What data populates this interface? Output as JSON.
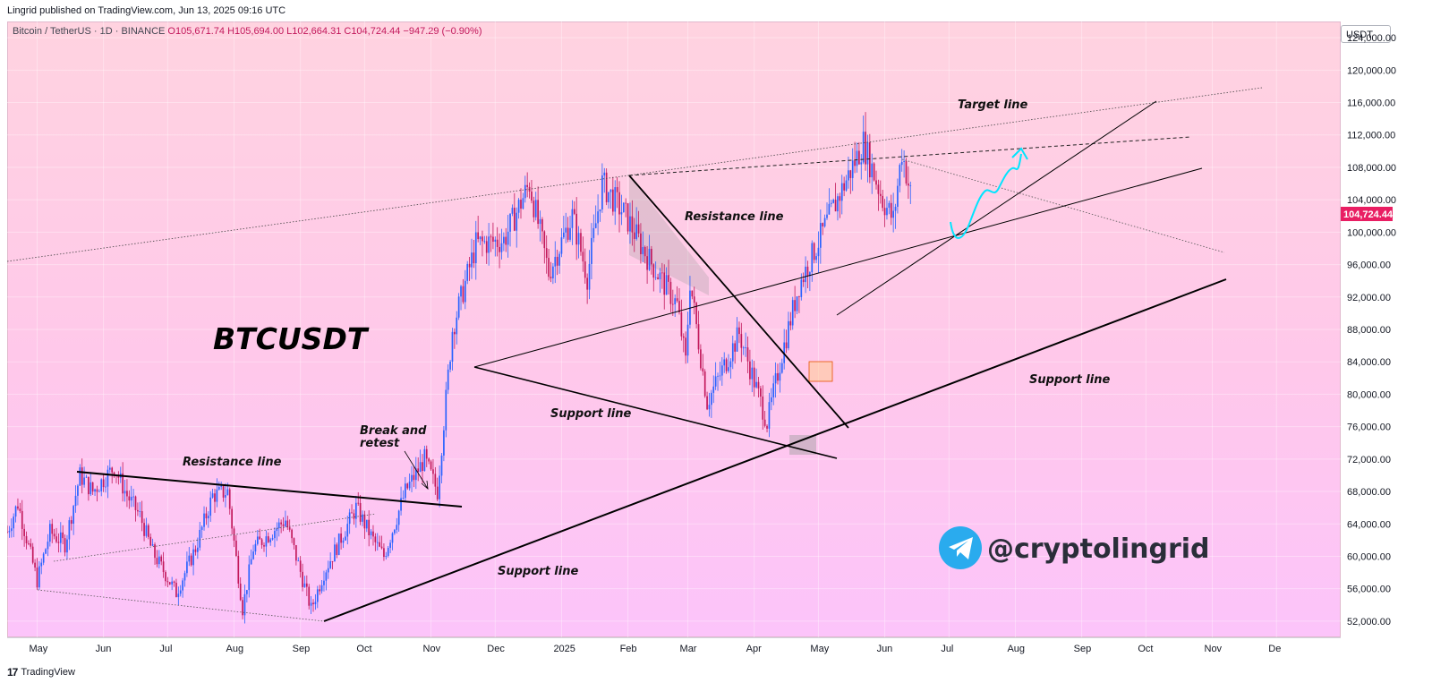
{
  "header": {
    "publish_line": "Lingrid published on TradingView.com, Jun 13, 2025 09:16 UTC",
    "symbol_name": "Bitcoin / TetherUS · 1D · BINANCE",
    "ohlc": "O105,671.74 H105,694.00 L102,664.31 C104,724.44 −947.29 (−0.90%)",
    "currency": "USDT"
  },
  "footer": {
    "logo": "17",
    "brand": "TradingView"
  },
  "colors": {
    "bull": "#2962ff",
    "bear": "#c2185b",
    "last_price_tag": "#e91e63",
    "arrow": "#00e5ff",
    "telegram": "#2aabee"
  },
  "chart_data": {
    "type": "candlestick",
    "symbol": "BTCUSDT",
    "ylim": [
      50000,
      126000
    ],
    "x_start": "2024-04-17",
    "x_end": "2025-12-31",
    "y_ticks": [
      "124,000.00",
      "120,000.00",
      "116,000.00",
      "112,000.00",
      "108,000.00",
      "104,000.00",
      "100,000.00",
      "96,000.00",
      "92,000.00",
      "88,000.00",
      "84,000.00",
      "80,000.00",
      "76,000.00",
      "72,000.00",
      "68,000.00",
      "64,000.00",
      "60,000.00",
      "56,000.00",
      "52,000.00"
    ],
    "x_ticks": [
      {
        "label": "May",
        "date": "2024-05-01"
      },
      {
        "label": "Jun",
        "date": "2024-06-01"
      },
      {
        "label": "Jul",
        "date": "2024-07-01"
      },
      {
        "label": "Aug",
        "date": "2024-08-01"
      },
      {
        "label": "Sep",
        "date": "2024-09-01"
      },
      {
        "label": "Oct",
        "date": "2024-10-01"
      },
      {
        "label": "Nov",
        "date": "2024-11-01"
      },
      {
        "label": "Dec",
        "date": "2024-12-01"
      },
      {
        "label": "2025",
        "date": "2025-01-01"
      },
      {
        "label": "Feb",
        "date": "2025-02-01"
      },
      {
        "label": "Mar",
        "date": "2025-03-01"
      },
      {
        "label": "Apr",
        "date": "2025-04-01"
      },
      {
        "label": "May",
        "date": "2025-05-01"
      },
      {
        "label": "Jun",
        "date": "2025-06-01"
      },
      {
        "label": "Jul",
        "date": "2025-07-01"
      },
      {
        "label": "Aug",
        "date": "2025-08-01"
      },
      {
        "label": "Sep",
        "date": "2025-09-01"
      },
      {
        "label": "Oct",
        "date": "2025-10-01"
      },
      {
        "label": "Nov",
        "date": "2025-11-01"
      },
      {
        "label": "De",
        "date": "2025-12-01"
      }
    ],
    "last_price": {
      "value": 104724.44,
      "label": "104,724.44"
    },
    "price_path": [
      [
        "2024-04-17",
        63000
      ],
      [
        "2024-04-22",
        66500
      ],
      [
        "2024-05-01",
        57000
      ],
      [
        "2024-05-07",
        63000
      ],
      [
        "2024-05-14",
        61500
      ],
      [
        "2024-05-21",
        70000
      ],
      [
        "2024-05-27",
        68000
      ],
      [
        "2024-06-06",
        71000
      ],
      [
        "2024-06-12",
        67500
      ],
      [
        "2024-06-18",
        65000
      ],
      [
        "2024-06-24",
        60500
      ],
      [
        "2024-07-05",
        55500
      ],
      [
        "2024-07-14",
        61000
      ],
      [
        "2024-07-22",
        67500
      ],
      [
        "2024-07-29",
        68000
      ],
      [
        "2024-08-05",
        53500
      ],
      [
        "2024-08-10",
        61000
      ],
      [
        "2024-08-25",
        64500
      ],
      [
        "2024-09-06",
        53500
      ],
      [
        "2024-09-12",
        58000
      ],
      [
        "2024-09-27",
        66000
      ],
      [
        "2024-10-05",
        62000
      ],
      [
        "2024-10-10",
        60000
      ],
      [
        "2024-10-20",
        68000
      ],
      [
        "2024-10-29",
        72000
      ],
      [
        "2024-11-04",
        68000
      ],
      [
        "2024-11-11",
        88000
      ],
      [
        "2024-11-22",
        98500
      ],
      [
        "2024-12-05",
        99000
      ],
      [
        "2024-12-17",
        106000
      ],
      [
        "2024-12-26",
        95000
      ],
      [
        "2025-01-06",
        102000
      ],
      [
        "2025-01-13",
        94500
      ],
      [
        "2025-01-20",
        106000
      ],
      [
        "2025-01-31",
        102000
      ],
      [
        "2025-02-10",
        97000
      ],
      [
        "2025-02-24",
        91000
      ],
      [
        "2025-02-28",
        84000
      ],
      [
        "2025-03-02",
        94000
      ],
      [
        "2025-03-10",
        79000
      ],
      [
        "2025-03-25",
        87500
      ],
      [
        "2025-04-07",
        76500
      ],
      [
        "2025-04-14",
        85000
      ],
      [
        "2025-04-22",
        93500
      ],
      [
        "2025-05-08",
        103000
      ],
      [
        "2025-05-22",
        111000
      ],
      [
        "2025-05-31",
        104000
      ],
      [
        "2025-06-05",
        101500
      ],
      [
        "2025-06-09",
        110000
      ],
      [
        "2025-06-13",
        104724
      ]
    ]
  },
  "annotations": {
    "title": "BTCUSDT",
    "target_line": "Target line",
    "resistance_upper": "Resistance line",
    "resistance_lower": "Resistance line",
    "support_middle": "Support line",
    "support_lower": "Support line",
    "support_right": "Support line",
    "break_retest_1": "Break and",
    "break_retest_2": "retest",
    "handle": "@cryptolingrid"
  }
}
